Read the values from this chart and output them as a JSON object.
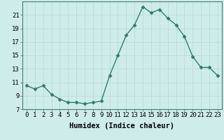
{
  "x": [
    0,
    1,
    2,
    3,
    4,
    5,
    6,
    7,
    8,
    9,
    10,
    11,
    12,
    13,
    14,
    15,
    16,
    17,
    18,
    19,
    20,
    21,
    22,
    23
  ],
  "y": [
    10.5,
    10.0,
    10.5,
    9.2,
    8.5,
    8.0,
    8.0,
    7.8,
    8.0,
    8.2,
    12.0,
    15.0,
    18.0,
    19.5,
    22.2,
    21.3,
    21.8,
    20.5,
    19.5,
    17.8,
    14.8,
    13.2,
    13.2,
    12.0
  ],
  "line_color": "#2e7d6e",
  "marker": "D",
  "marker_size": 2.5,
  "bg_color": "#ceecea",
  "grid_color_major": "#b8d8d5",
  "grid_color_minor": "#cce8e5",
  "xlabel": "Humidex (Indice chaleur)",
  "ylim": [
    7,
    23
  ],
  "xlim": [
    -0.5,
    23.5
  ],
  "yticks": [
    7,
    9,
    11,
    13,
    15,
    17,
    19,
    21
  ],
  "xticks": [
    0,
    1,
    2,
    3,
    4,
    5,
    6,
    7,
    8,
    9,
    10,
    11,
    12,
    13,
    14,
    15,
    16,
    17,
    18,
    19,
    20,
    21,
    22,
    23
  ],
  "xlabel_fontsize": 7.5,
  "tick_fontsize": 6.5,
  "line_width": 1.0
}
